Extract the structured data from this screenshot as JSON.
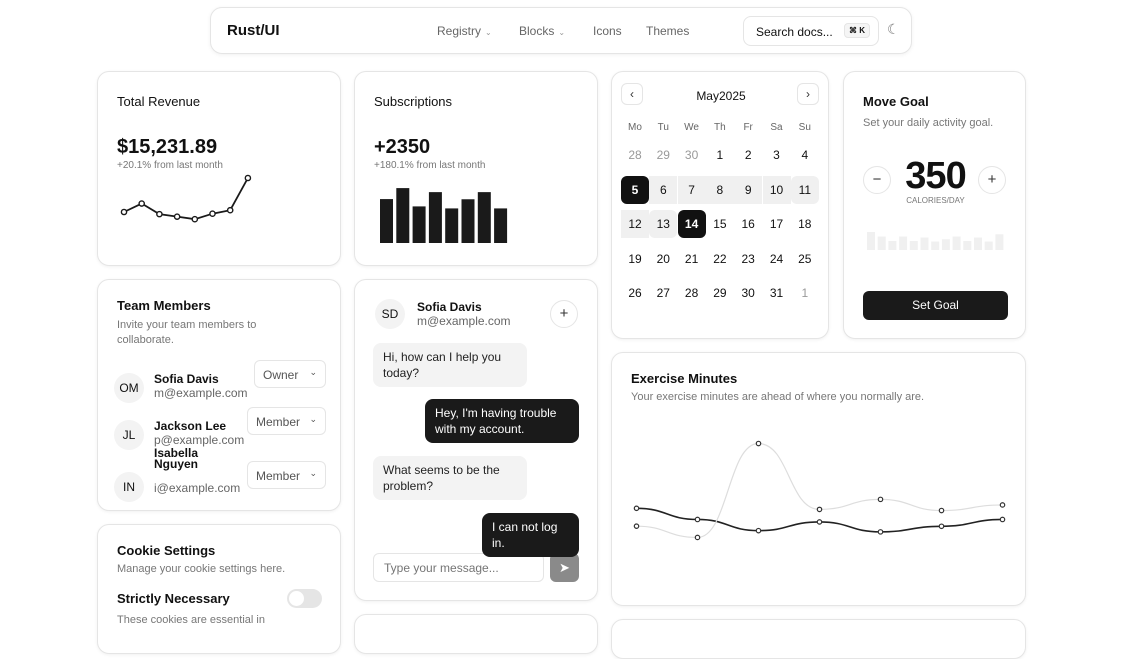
{
  "nav": {
    "brand": "Rust/UI",
    "links": [
      {
        "label": "Registry",
        "dropdown": true
      },
      {
        "label": "Blocks",
        "dropdown": true
      },
      {
        "label": "Icons"
      },
      {
        "label": "Themes"
      }
    ],
    "search": "Search docs...",
    "shortcut": "⌘ K",
    "theme_icon": "moon-icon"
  },
  "revenue": {
    "title": "Total Revenue",
    "value": "$15,231.89",
    "change": "+20.1% from last month"
  },
  "subscriptions": {
    "title": "Subscriptions",
    "value": "+2350",
    "change": "+180.1% from last month"
  },
  "calendar": {
    "month": "May",
    "year": "2025",
    "weekdays": [
      "Mo",
      "Tu",
      "We",
      "Th",
      "Fr",
      "Sa",
      "Su"
    ],
    "weeks": [
      [
        "28",
        "29",
        "30",
        "1",
        "2",
        "3",
        "4"
      ],
      [
        "5",
        "6",
        "7",
        "8",
        "9",
        "10",
        "11"
      ],
      [
        "12",
        "13",
        "14",
        "15",
        "16",
        "17",
        "18"
      ],
      [
        "19",
        "20",
        "21",
        "22",
        "23",
        "24",
        "25"
      ],
      [
        "26",
        "27",
        "28",
        "29",
        "30",
        "31",
        "1"
      ]
    ],
    "selected": [
      "5",
      "14"
    ],
    "range_end": "13"
  },
  "goal": {
    "title": "Move Goal",
    "desc": "Set your daily activity goal.",
    "value": "350",
    "unit": "CALORIES/DAY",
    "button": "Set Goal",
    "minus": "−",
    "plus": "+"
  },
  "team": {
    "title": "Team Members",
    "desc": "Invite your team members to collaborate.",
    "members": [
      {
        "initials": "OM",
        "name": "Sofia Davis",
        "email": "m@example.com",
        "role": "Owner"
      },
      {
        "initials": "JL",
        "name": "Jackson Lee",
        "email": "p@example.com",
        "role": "Member"
      },
      {
        "initials": "IN",
        "name": "Isabella Nguyen",
        "email": "i@example.com",
        "role": "Member"
      }
    ]
  },
  "chat": {
    "initials": "SD",
    "name": "Sofia Davis",
    "email": "m@example.com",
    "messages": [
      {
        "from": "agent",
        "text": "Hi, how can I help you today?"
      },
      {
        "from": "user",
        "text": "Hey, I'm having trouble with my account."
      },
      {
        "from": "agent",
        "text": "What seems to be the problem?"
      },
      {
        "from": "user",
        "text": "I can not log in."
      }
    ],
    "placeholder": "Type your message..."
  },
  "cookies": {
    "title": "Cookie Settings",
    "desc": "Manage your cookie settings here.",
    "item": "Strictly Necessary",
    "item_desc": "These cookies are essential in",
    "enabled": false
  },
  "exercise": {
    "title": "Exercise Minutes",
    "desc": "Your exercise minutes are ahead of where you normally are."
  },
  "chart_data": [
    {
      "type": "line",
      "id": "revenue",
      "values": [
        10400,
        14405,
        9400,
        8200,
        7000,
        9600,
        11244,
        26475
      ]
    },
    {
      "type": "bar",
      "id": "subscriptions",
      "values": [
        240,
        300,
        200,
        278,
        189,
        239,
        278,
        189
      ]
    },
    {
      "type": "bar",
      "id": "move-goal",
      "values": [
        400,
        300,
        200,
        300,
        200,
        278,
        189,
        239,
        300,
        200,
        278,
        189,
        349
      ]
    },
    {
      "type": "line",
      "id": "exercise",
      "series": [
        {
          "values": [
            400,
            300,
            200,
            278,
            189,
            239,
            300
          ],
          "color": "#222222"
        },
        {
          "values": [
            240,
            139,
            980,
            390,
            480,
            380,
            430
          ],
          "color": "#dddddd"
        }
      ]
    }
  ]
}
